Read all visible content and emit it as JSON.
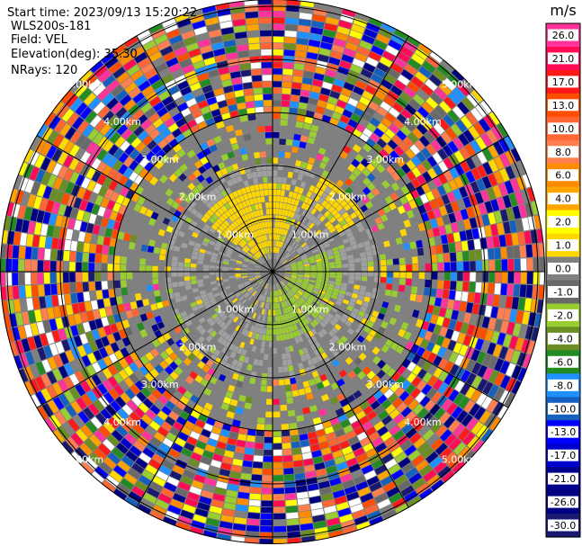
{
  "header": {
    "start_time": "Start time: 2023/09/13 15:20:22",
    "instrument": "WLS200s-181",
    "field": "Field: VEL",
    "elevation": "Elevation(deg): 35.30",
    "nrays": "NRays: 120"
  },
  "chart_data": {
    "type": "heatmap",
    "projection": "polar PPI scan",
    "range_rings_km": [
      1.0,
      2.0,
      3.0,
      4.0,
      5.0
    ],
    "ring_labels": [
      "1.00km",
      "2.00km",
      "3.00km",
      "4.00km",
      "5.00km"
    ],
    "n_rays": 120,
    "colorbar": {
      "unit": "m/s",
      "tick_labels": [
        "26.0",
        "21.0",
        "17.0",
        "13.0",
        "10.0",
        "8.0",
        "6.0",
        "4.0",
        "2.0",
        "1.0",
        "0.0",
        "-1.0",
        "-2.0",
        "-4.0",
        "-6.0",
        "-8.0",
        "-10.0",
        "-13.0",
        "-17.0",
        "-21.0",
        "-26.0",
        "-30.0"
      ],
      "colors": [
        "#ff3399",
        "#ff0a55",
        "#ff1a1a",
        "#ff4d00",
        "#ff6633",
        "#ff7f50",
        "#ff8c00",
        "#ffa500",
        "#ffff00",
        "#ffd700",
        "#808080",
        "#696969",
        "#9acd32",
        "#6b8e23",
        "#228b22",
        "#1e90ff",
        "#1560bd",
        "#0000ff",
        "#0000cd",
        "#00008b",
        "#000080",
        "#191970"
      ]
    }
  }
}
